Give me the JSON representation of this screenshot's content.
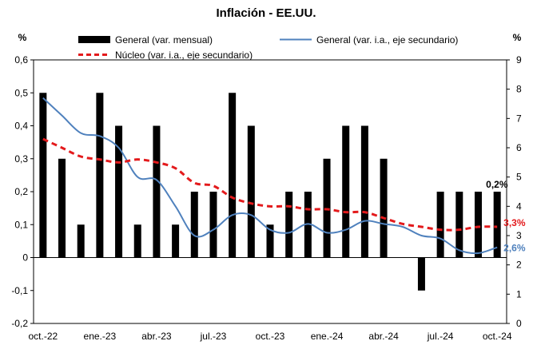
{
  "chart_data": {
    "type": "bar",
    "title": "Inflación - EE.UU.",
    "left_axis_unit": "%",
    "right_axis_unit": "%",
    "ylim_left": [
      -0.2,
      0.6
    ],
    "yticks_left": [
      "-0,2",
      "-0,1",
      "0",
      "0,1",
      "0,2",
      "0,3",
      "0,4",
      "0,5",
      "0,6"
    ],
    "ylim_right": [
      0,
      9
    ],
    "yticks_right": [
      "0",
      "1",
      "2",
      "3",
      "4",
      "5",
      "6",
      "7",
      "8",
      "9"
    ],
    "categories": [
      "oct.-22",
      "nov.-22",
      "dic.-22",
      "ene.-23",
      "feb.-23",
      "mar.-23",
      "abr.-23",
      "may.-23",
      "jun.-23",
      "jul.-23",
      "ago.-23",
      "sep.-23",
      "oct.-23",
      "nov.-23",
      "dic.-23",
      "ene.-24",
      "feb.-24",
      "mar.-24",
      "abr.-24",
      "may.-24",
      "jun.-24",
      "jul.-24",
      "ago.-24",
      "sep.-24",
      "oct.-24"
    ],
    "xtick_labels": [
      "oct.-22",
      "ene.-23",
      "abr.-23",
      "jul.-23",
      "oct.-23",
      "ene.-24",
      "abr.-24",
      "jul.-24",
      "oct.-24"
    ],
    "series": [
      {
        "name": "General (var. mensual)",
        "kind": "bar",
        "axis": "left",
        "color": "#000000",
        "values": [
          0.5,
          0.3,
          0.1,
          0.5,
          0.4,
          0.1,
          0.4,
          0.1,
          0.2,
          0.2,
          0.5,
          0.4,
          0.1,
          0.2,
          0.2,
          0.3,
          0.4,
          0.4,
          0.3,
          0.0,
          -0.1,
          0.2,
          0.2,
          0.2,
          0.2
        ]
      },
      {
        "name": "General (var. i.a., eje secundario)",
        "kind": "line",
        "axis": "right",
        "color": "#4f81bd",
        "values": [
          7.7,
          7.1,
          6.5,
          6.4,
          6.0,
          5.0,
          4.9,
          4.0,
          3.0,
          3.2,
          3.7,
          3.7,
          3.2,
          3.1,
          3.4,
          3.1,
          3.2,
          3.5,
          3.4,
          3.3,
          3.0,
          2.9,
          2.5,
          2.4,
          2.6
        ]
      },
      {
        "name": "Núcleo (var. i.a., eje secundario)",
        "kind": "line",
        "axis": "right",
        "style": "dashed",
        "color": "#e31a1c",
        "values": [
          6.3,
          6.0,
          5.7,
          5.6,
          5.5,
          5.6,
          5.5,
          5.3,
          4.8,
          4.7,
          4.3,
          4.1,
          4.0,
          4.0,
          3.9,
          3.9,
          3.8,
          3.8,
          3.6,
          3.4,
          3.3,
          3.2,
          3.2,
          3.3,
          3.3
        ]
      }
    ],
    "end_labels": {
      "bar": "0,2%",
      "core": "3,3%",
      "headline": "2,6%"
    }
  }
}
